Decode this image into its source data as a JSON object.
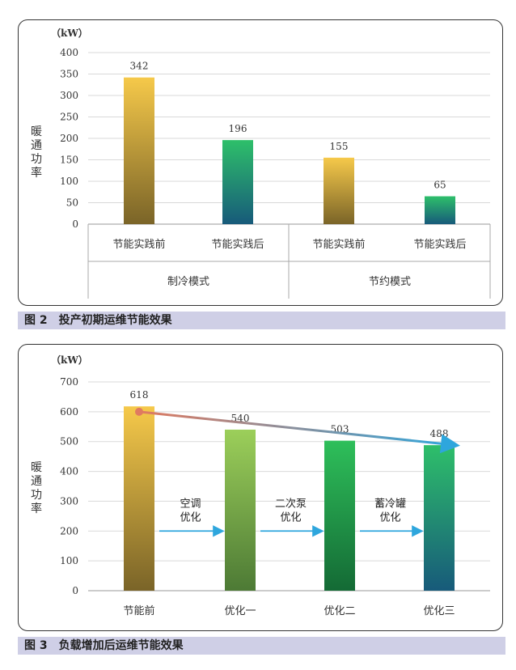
{
  "chart_data": [
    {
      "type": "bar",
      "unit": "（kW）",
      "ylabel": "暖通功率",
      "ylim": [
        0,
        400
      ],
      "yticks": [
        0,
        50,
        100,
        150,
        200,
        250,
        300,
        350,
        400
      ],
      "categories": [
        "节能实践前",
        "节能实践后",
        "节能实践前",
        "节能实践后"
      ],
      "groups": [
        "制冷模式",
        "节约模式"
      ],
      "values": [
        342,
        196,
        155,
        65
      ],
      "bar_styles": [
        "gold",
        "teal",
        "gold",
        "teal"
      ],
      "grid": true
    },
    {
      "type": "bar",
      "unit": "（kW）",
      "ylabel": "暖通功率",
      "ylim": [
        0,
        700
      ],
      "yticks": [
        0,
        100,
        200,
        300,
        400,
        500,
        600,
        700
      ],
      "categories": [
        "节能前",
        "优化一",
        "优化二",
        "优化三"
      ],
      "values": [
        618,
        540,
        503,
        488
      ],
      "bar_styles": [
        "gold",
        "lightgreen",
        "green",
        "teal"
      ],
      "steps": [
        "空调\n优化",
        "二次泵\n优化",
        "蓄冷罐\n优化"
      ],
      "trend_line": true,
      "grid": true
    }
  ],
  "captions": {
    "fig2": "图 2　投产初期运维节能效果",
    "fig3": "图 3　负载增加后运维节能效果"
  },
  "colors": {
    "gold_top": "#f6c94a",
    "gold_bottom": "#7a6428",
    "teal_top": "#2ebf6a",
    "teal_bottom": "#175a7a",
    "lightgreen_top": "#9ccf5a",
    "lightgreen_bottom": "#4d7a35",
    "green_top": "#2ebf5a",
    "green_bottom": "#146a35",
    "arrow": "#2ea6dd",
    "trend_start": "#e07a60",
    "grid": "#d9d9d9"
  }
}
